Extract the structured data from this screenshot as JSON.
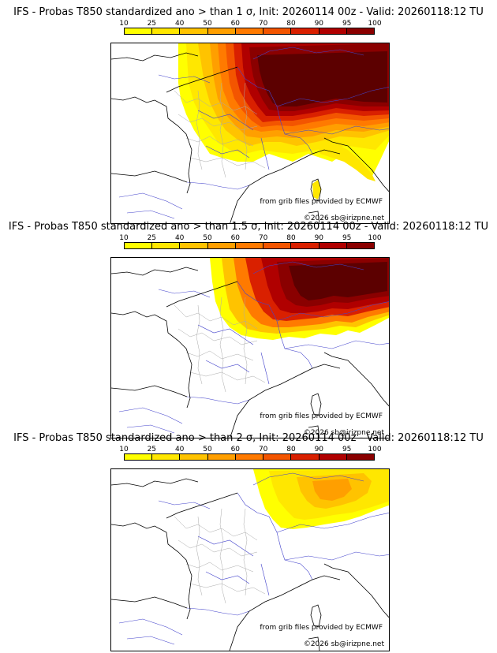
{
  "colorbar": {
    "ticks": [
      "10",
      "25",
      "40",
      "50",
      "60",
      "70",
      "80",
      "90",
      "95",
      "100"
    ],
    "colors": [
      "#ffff00",
      "#ffe700",
      "#ffc300",
      "#ff9f00",
      "#ff7a00",
      "#f35500",
      "#d92000",
      "#b00000",
      "#8a0000",
      "#5c0000"
    ]
  },
  "credits": {
    "source": "from grib files provided by ECMWF",
    "copyright": "©2026 sb@irizpne.net"
  },
  "panels": [
    {
      "title": "IFS - Probas T850  standardized ano > than 1 σ, Init: 20260114 00z - Valid: 20260118:12 TU"
    },
    {
      "title": "IFS - Probas T850  standardized ano > than 1.5 σ, Init: 20260114 00z - Valid: 20260118:12 TU"
    },
    {
      "title": "IFS - Probas T850  standardized ano > than 2 σ, Init: 20260114 00z - Valid: 20260118:12 TU"
    }
  ]
}
